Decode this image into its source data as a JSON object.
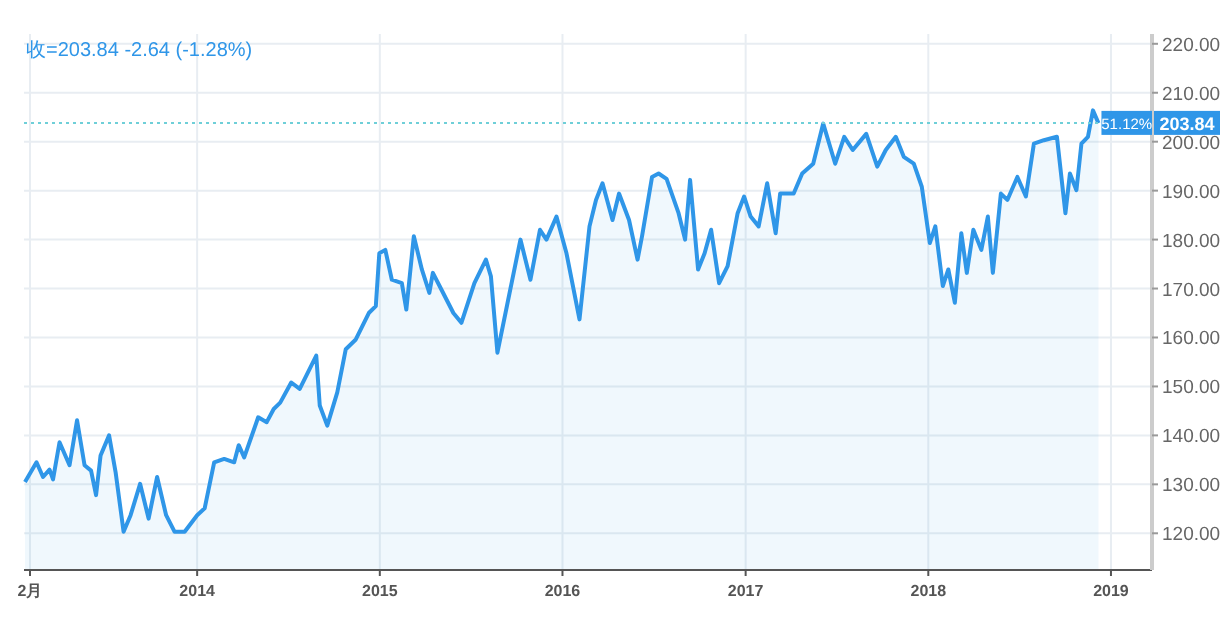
{
  "chart_data": {
    "type": "area",
    "x": [
      "2013-01-22",
      "2013-02-14",
      "2013-02-27",
      "2013-03-12",
      "2013-03-19",
      "2013-04-01",
      "2013-04-21",
      "2013-05-06",
      "2013-05-21",
      "2013-06-03",
      "2013-06-13",
      "2013-06-22",
      "2013-07-09",
      "2013-07-22",
      "2013-08-07",
      "2013-08-21",
      "2013-09-09",
      "2013-09-26",
      "2013-10-13",
      "2013-10-31",
      "2013-11-17",
      "2013-12-07",
      "2014-01-01",
      "2014-01-16",
      "2014-02-04",
      "2014-02-24",
      "2014-03-16",
      "2014-03-25",
      "2014-04-05",
      "2014-05-03",
      "2014-05-20",
      "2014-06-03",
      "2014-06-16",
      "2014-07-08",
      "2014-07-25",
      "2014-08-27",
      "2014-09-03",
      "2014-09-18",
      "2014-10-08",
      "2014-10-25",
      "2014-11-14",
      "2014-12-10",
      "2014-12-24",
      "2014-12-31",
      "2015-01-12",
      "2015-01-25",
      "2015-02-14",
      "2015-02-23",
      "2015-03-10",
      "2015-03-26",
      "2015-04-10",
      "2015-04-17",
      "2015-05-04",
      "2015-05-28",
      "2015-06-13",
      "2015-07-09",
      "2015-08-01",
      "2015-08-11",
      "2015-08-24",
      "2015-10-09",
      "2015-10-29",
      "2015-11-17",
      "2015-11-30",
      "2015-12-20",
      "2016-01-09",
      "2016-02-04",
      "2016-02-24",
      "2016-03-08",
      "2016-03-21",
      "2016-04-10",
      "2016-04-23",
      "2016-05-13",
      "2016-05-30",
      "2016-06-08",
      "2016-06-28",
      "2016-07-11",
      "2016-07-27",
      "2016-08-20",
      "2016-09-02",
      "2016-09-12",
      "2016-09-28",
      "2016-10-11",
      "2016-10-24",
      "2016-11-09",
      "2016-11-26",
      "2016-12-16",
      "2016-12-29",
      "2017-01-11",
      "2017-01-27",
      "2017-02-13",
      "2017-03-02",
      "2017-03-11",
      "2017-04-07",
      "2017-04-24",
      "2017-05-16",
      "2017-06-05",
      "2017-06-29",
      "2017-07-17",
      "2017-08-03",
      "2017-08-30",
      "2017-09-21",
      "2017-10-08",
      "2017-10-28",
      "2017-11-13",
      "2017-12-03",
      "2017-12-19",
      "2018-01-04",
      "2018-01-15",
      "2018-01-30",
      "2018-02-10",
      "2018-02-23",
      "2018-03-08",
      "2018-03-19",
      "2018-04-01",
      "2018-04-17",
      "2018-04-30",
      "2018-05-10",
      "2018-05-26",
      "2018-06-08",
      "2018-06-28",
      "2018-07-15",
      "2018-07-31",
      "2018-08-20",
      "2018-09-15",
      "2018-10-02",
      "2018-10-11",
      "2018-10-24",
      "2018-11-03",
      "2018-11-16",
      "2018-11-26",
      "2018-12-07"
    ],
    "series": [
      {
        "color": "#2f96e8",
        "values": [
          130.5,
          134.5,
          131.5,
          133,
          131,
          138.6,
          133.9,
          143.1,
          133.9,
          132.8,
          127.8,
          135.9,
          140,
          132.5,
          120.3,
          123.7,
          130.1,
          123,
          131.5,
          123.7,
          120.3,
          120.3,
          123.7,
          125.1,
          134.5,
          135.2,
          134.5,
          138,
          135.5,
          143.7,
          142.7,
          145.4,
          146.7,
          150.8,
          149.5,
          156.3,
          146.1,
          142,
          148.8,
          157.6,
          159.6,
          165,
          166.4,
          177.2,
          177.9,
          171.8,
          171.1,
          165.7,
          180.7,
          173.9,
          169.1,
          173.2,
          169.8,
          165,
          163,
          171.1,
          175.9,
          172.5,
          156.9,
          180,
          171.8,
          182,
          180,
          184.7,
          177.2,
          163.7,
          182.7,
          188.1,
          191.5,
          184,
          189.4,
          184,
          175.9,
          180.7,
          192.8,
          193.5,
          192.4,
          185.4,
          180,
          192.2,
          173.9,
          177.2,
          182,
          171.1,
          174.6,
          185.4,
          188.8,
          184.7,
          182.7,
          191.5,
          181.3,
          189.4,
          189.4,
          193.5,
          195.5,
          203.7,
          195.5,
          201,
          198.3,
          201.6,
          194.9,
          198.3,
          201,
          196.9,
          195.5,
          190.8,
          179.3,
          182.7,
          170.5,
          173.9,
          167.1,
          181.3,
          173.2,
          182,
          177.9,
          184.7,
          173.2,
          189.4,
          188.1,
          192.8,
          188.8,
          199.6,
          200.3,
          201,
          185.4,
          193.5,
          190.1,
          199.6,
          201,
          206.4,
          203.8
        ]
      }
    ],
    "xlim": [
      "2013-01-20",
      "2019-03-24"
    ],
    "xticks": [
      {
        "value": "2013-02-01",
        "label": "2月"
      },
      {
        "value": "2014-01-01",
        "label": "2014"
      },
      {
        "value": "2015-01-01",
        "label": "2015"
      },
      {
        "value": "2016-01-01",
        "label": "2016"
      },
      {
        "value": "2017-01-01",
        "label": "2017"
      },
      {
        "value": "2018-01-01",
        "label": "2018"
      },
      {
        "value": "2019-01-01",
        "label": "2019"
      }
    ],
    "ylim": [
      112.5,
      222
    ],
    "yticks": [
      {
        "value": 120,
        "label": "120.00"
      },
      {
        "value": 130,
        "label": "130.00"
      },
      {
        "value": 140,
        "label": "140.00"
      },
      {
        "value": 150,
        "label": "150.00"
      },
      {
        "value": 160,
        "label": "160.00"
      },
      {
        "value": 170,
        "label": "170.00"
      },
      {
        "value": 180,
        "label": "180.00"
      },
      {
        "value": 190,
        "label": "190.00"
      },
      {
        "value": 200,
        "label": "200.00"
      },
      {
        "value": 210,
        "label": "210.00"
      },
      {
        "value": 220,
        "label": "220.00"
      }
    ],
    "grid": true,
    "ref_lines": [
      {
        "axis": "y",
        "value": 203.84,
        "label": "203.84",
        "color": "#6fcfd8",
        "line_style": "dotted"
      }
    ],
    "annotations": [
      "收=203.84  -2.64 (-1.28%)",
      {
        "text": "51.12%",
        "x": "2018-12-13",
        "y": 203.84
      }
    ]
  }
}
